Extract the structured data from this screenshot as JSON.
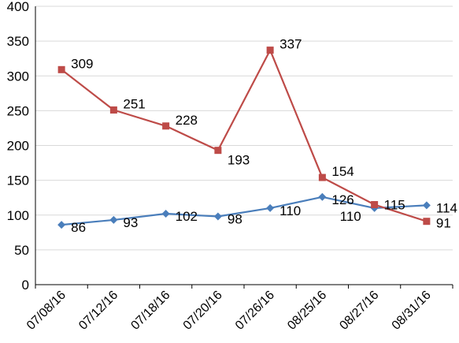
{
  "chart_data": {
    "type": "line",
    "title": "",
    "xlabel": "",
    "ylabel": "",
    "categories": [
      "07/08/16",
      "07/12/16",
      "07/18/16",
      "07/20/16",
      "07/26/16",
      "08/25/16",
      "08/27/16",
      "08/31/16"
    ],
    "ylim": [
      0,
      400
    ],
    "yticks": [
      "0",
      "50",
      "100",
      "150",
      "200",
      "250",
      "300",
      "350",
      "400"
    ],
    "grid": true,
    "legend": "none",
    "series": [
      {
        "key": "series-blue",
        "color": "#4a7ebb",
        "marker": "diamond",
        "values": [
          86,
          93,
          102,
          98,
          110,
          126,
          110,
          114
        ]
      },
      {
        "key": "series-red",
        "color": "#be4b48",
        "marker": "square",
        "values": [
          309,
          251,
          228,
          193,
          337,
          154,
          115,
          91
        ]
      }
    ],
    "colors": {
      "gridline": "#d9d9d9",
      "axis": "#000000"
    }
  }
}
